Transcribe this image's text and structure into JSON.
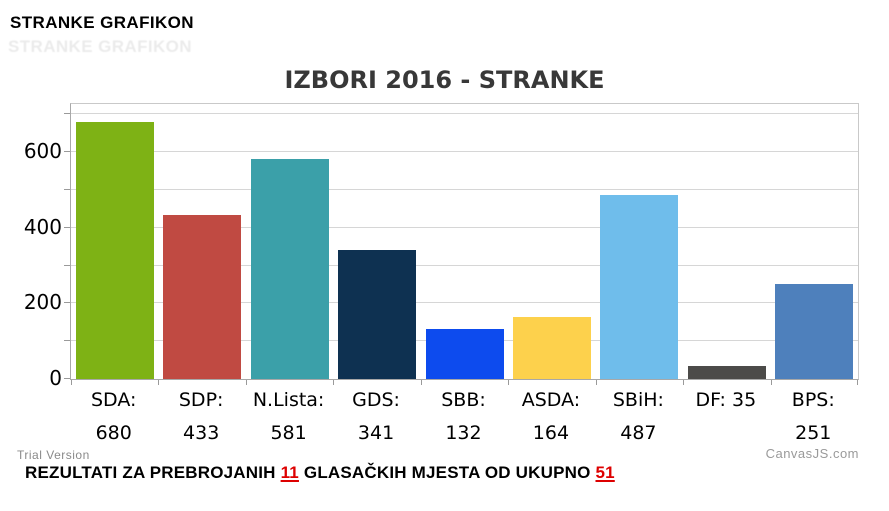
{
  "header": {
    "title": "STRANKE GRAFIKON",
    "ghost": "STRANKE GRAFIKON"
  },
  "chart_data": {
    "type": "bar",
    "title": "IZBORI 2016 - STRANKE",
    "categories": [
      "SDA",
      "SDP",
      "N.Lista",
      "GDS",
      "SBB",
      "ASDA",
      "SBiH",
      "DF",
      "BPS"
    ],
    "values": [
      680,
      433,
      581,
      341,
      132,
      164,
      487,
      35,
      251
    ],
    "labels": [
      [
        "SDA:",
        "680"
      ],
      [
        "SDP:",
        "433"
      ],
      [
        "N.Lista:",
        "581"
      ],
      [
        "GDS:",
        "341"
      ],
      [
        "SBB:",
        "132"
      ],
      [
        "ASDA:",
        "164"
      ],
      [
        "SBiH:",
        "487"
      ],
      [
        "DF: 35"
      ],
      [
        "BPS:",
        "251"
      ]
    ],
    "bar_colors": [
      "#7eb215",
      "#c04a42",
      "#3ba0a9",
      "#0e3151",
      "#0d4bee",
      "#fdd14c",
      "#6fbdeb",
      "#4c4b49",
      "#4e80bc"
    ],
    "xlabel": "",
    "ylabel": "",
    "ylim": [
      0,
      727
    ],
    "yticks": [
      0,
      200,
      400,
      600
    ],
    "grid_interval": 100,
    "grid": true,
    "legend_position": "none"
  },
  "footer": {
    "trial_label": "Trial Version",
    "brand_label": "CanvasJS.com",
    "note_parts": [
      {
        "text": "REZULTATI ZA PREBROJANIH ",
        "style": "normal"
      },
      {
        "text": "11",
        "style": "highlight"
      },
      {
        "text": " GLASAČKIH MJESTA OD UKUPNO ",
        "style": "normal"
      },
      {
        "text": "51",
        "style": "highlight"
      }
    ]
  },
  "colors": {
    "highlight_red": "#dd0000",
    "title_gray": "#383838",
    "gridline_gray": "#d6d6d6",
    "footer_gray": "#9a9a9a"
  }
}
